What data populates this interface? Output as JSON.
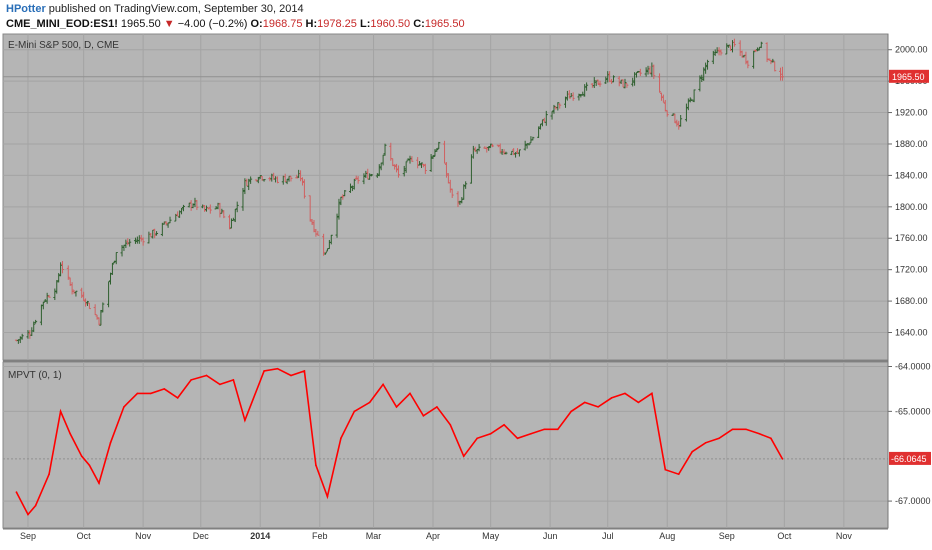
{
  "header": {
    "author": "HPotter",
    "published": " published on TradingView.com, September 30, 2014",
    "symbol": "CME_MINI_EOD:ES1!",
    "last": "1965.50",
    "arrow": "▼",
    "change": "−4.00 (−0.2%)",
    "o_label": "O:",
    "o_value": "1968.75",
    "h_label": "H:",
    "h_value": "1978.25",
    "l_label": "L:",
    "l_value": "1960.50",
    "c_label": "C:",
    "c_value": "1965.50"
  },
  "colors": {
    "plot_bg": "#b5b5b5",
    "grid": "#a4a4a4",
    "indicator": "#ff0000",
    "up_bar": "#2e5f2e",
    "down_bar": "#d06060",
    "label_bg": "#e03030"
  },
  "chart_data": [
    {
      "type": "ohlc",
      "title": "E-Mini S&P 500, D, CME",
      "y_ticks": [
        "2000.00",
        "1960.00",
        "1920.00",
        "1880.00",
        "1840.00",
        "1800.00",
        "1760.00",
        "1720.00",
        "1680.00",
        "1640.00"
      ],
      "ylim": [
        1605,
        2020
      ],
      "last_price_label": "1965.50",
      "close_series": [
        [
          "2013-08-27",
          1630
        ],
        [
          "2013-09-03",
          1640
        ],
        [
          "2013-09-10",
          1680
        ],
        [
          "2013-09-17",
          1700
        ],
        [
          "2013-09-19",
          1728
        ],
        [
          "2013-09-25",
          1695
        ],
        [
          "2013-10-01",
          1685
        ],
        [
          "2013-10-09",
          1655
        ],
        [
          "2013-10-14",
          1705
        ],
        [
          "2013-10-18",
          1745
        ],
        [
          "2013-10-25",
          1755
        ],
        [
          "2013-11-01",
          1760
        ],
        [
          "2013-11-08",
          1768
        ],
        [
          "2013-11-18",
          1790
        ],
        [
          "2013-11-27",
          1805
        ],
        [
          "2013-12-03",
          1795
        ],
        [
          "2013-12-10",
          1800
        ],
        [
          "2013-12-16",
          1775
        ],
        [
          "2013-12-24",
          1830
        ],
        [
          "2013-12-31",
          1840
        ],
        [
          "2014-01-10",
          1835
        ],
        [
          "2014-01-22",
          1838
        ],
        [
          "2014-01-27",
          1785
        ],
        [
          "2014-02-04",
          1740
        ],
        [
          "2014-02-12",
          1810
        ],
        [
          "2014-02-21",
          1835
        ],
        [
          "2014-03-03",
          1845
        ],
        [
          "2014-03-07",
          1875
        ],
        [
          "2014-03-14",
          1840
        ],
        [
          "2014-03-21",
          1862
        ],
        [
          "2014-03-28",
          1850
        ],
        [
          "2014-04-04",
          1880
        ],
        [
          "2014-04-11",
          1812
        ],
        [
          "2014-04-15",
          1805
        ],
        [
          "2014-04-22",
          1870
        ],
        [
          "2014-05-01",
          1875
        ],
        [
          "2014-05-15",
          1868
        ],
        [
          "2014-05-22",
          1885
        ],
        [
          "2014-05-30",
          1915
        ],
        [
          "2014-06-10",
          1940
        ],
        [
          "2014-06-20",
          1950
        ],
        [
          "2014-07-01",
          1965
        ],
        [
          "2014-07-10",
          1955
        ],
        [
          "2014-07-18",
          1970
        ],
        [
          "2014-07-24",
          1975
        ],
        [
          "2014-07-31",
          1925
        ],
        [
          "2014-08-07",
          1905
        ],
        [
          "2014-08-15",
          1945
        ],
        [
          "2014-08-22",
          1985
        ],
        [
          "2014-08-29",
          2000
        ],
        [
          "2014-09-05",
          2005
        ],
        [
          "2014-09-12",
          1985
        ],
        [
          "2014-09-18",
          2008
        ],
        [
          "2014-09-22",
          1990
        ],
        [
          "2014-09-30",
          1965.5
        ]
      ]
    },
    {
      "type": "line",
      "title": "MPVT (0, 1)",
      "y_ticks": [
        "-64.0000",
        "-65.0000",
        "-67.0000"
      ],
      "ylim": [
        -67.6,
        -63.9
      ],
      "last_value_label": "-66.0645",
      "x": [
        "2013-08-27",
        "2013-09-02",
        "2013-09-06",
        "2013-09-13",
        "2013-09-19",
        "2013-09-24",
        "2013-09-30",
        "2013-10-04",
        "2013-10-09",
        "2013-10-15",
        "2013-10-22",
        "2013-10-29",
        "2013-11-05",
        "2013-11-12",
        "2013-11-19",
        "2013-11-26",
        "2013-12-04",
        "2013-12-11",
        "2013-12-18",
        "2013-12-24",
        "2014-01-03",
        "2014-01-10",
        "2014-01-17",
        "2014-01-24",
        "2014-01-30",
        "2014-02-05",
        "2014-02-12",
        "2014-02-19",
        "2014-02-27",
        "2014-03-06",
        "2014-03-13",
        "2014-03-20",
        "2014-03-27",
        "2014-04-03",
        "2014-04-10",
        "2014-04-17",
        "2014-04-24",
        "2014-05-01",
        "2014-05-08",
        "2014-05-15",
        "2014-05-22",
        "2014-05-29",
        "2014-06-05",
        "2014-06-12",
        "2014-06-19",
        "2014-06-26",
        "2014-07-03",
        "2014-07-10",
        "2014-07-17",
        "2014-07-24",
        "2014-07-31",
        "2014-08-07",
        "2014-08-14",
        "2014-08-21",
        "2014-08-28",
        "2014-09-04",
        "2014-09-11",
        "2014-09-18",
        "2014-09-24",
        "2014-09-30"
      ],
      "y": [
        -66.8,
        -67.3,
        -67.1,
        -66.4,
        -65.0,
        -65.5,
        -66.0,
        -66.2,
        -66.6,
        -65.7,
        -64.9,
        -64.6,
        -64.6,
        -64.5,
        -64.7,
        -64.3,
        -64.2,
        -64.4,
        -64.3,
        -65.2,
        -64.1,
        -64.05,
        -64.2,
        -64.1,
        -66.2,
        -66.9,
        -65.6,
        -65.0,
        -64.8,
        -64.4,
        -64.9,
        -64.6,
        -65.1,
        -64.9,
        -65.3,
        -66.0,
        -65.6,
        -65.5,
        -65.3,
        -65.6,
        -65.5,
        -65.4,
        -65.4,
        -65.0,
        -64.8,
        -64.9,
        -64.7,
        -64.6,
        -64.8,
        -64.6,
        -66.3,
        -66.4,
        -65.9,
        -65.7,
        -65.6,
        -65.4,
        -65.4,
        -65.5,
        -65.6,
        -66.06
      ]
    }
  ],
  "x_axis": {
    "labels": [
      {
        "date": "2013-09-02",
        "text": "Sep",
        "bold": false
      },
      {
        "date": "2013-10-01",
        "text": "Oct",
        "bold": false
      },
      {
        "date": "2013-11-01",
        "text": "Nov",
        "bold": false
      },
      {
        "date": "2013-12-01",
        "text": "Dec",
        "bold": false
      },
      {
        "date": "2014-01-01",
        "text": "2014",
        "bold": true
      },
      {
        "date": "2014-02-01",
        "text": "Feb",
        "bold": false
      },
      {
        "date": "2014-03-01",
        "text": "Mar",
        "bold": false
      },
      {
        "date": "2014-04-01",
        "text": "Apr",
        "bold": false
      },
      {
        "date": "2014-05-01",
        "text": "May",
        "bold": false
      },
      {
        "date": "2014-06-01",
        "text": "Jun",
        "bold": false
      },
      {
        "date": "2014-07-01",
        "text": "Jul",
        "bold": false
      },
      {
        "date": "2014-08-01",
        "text": "Aug",
        "bold": false
      },
      {
        "date": "2014-09-01",
        "text": "Sep",
        "bold": false
      },
      {
        "date": "2014-10-01",
        "text": "Oct",
        "bold": false
      },
      {
        "date": "2014-11-01",
        "text": "Nov",
        "bold": false
      }
    ]
  }
}
